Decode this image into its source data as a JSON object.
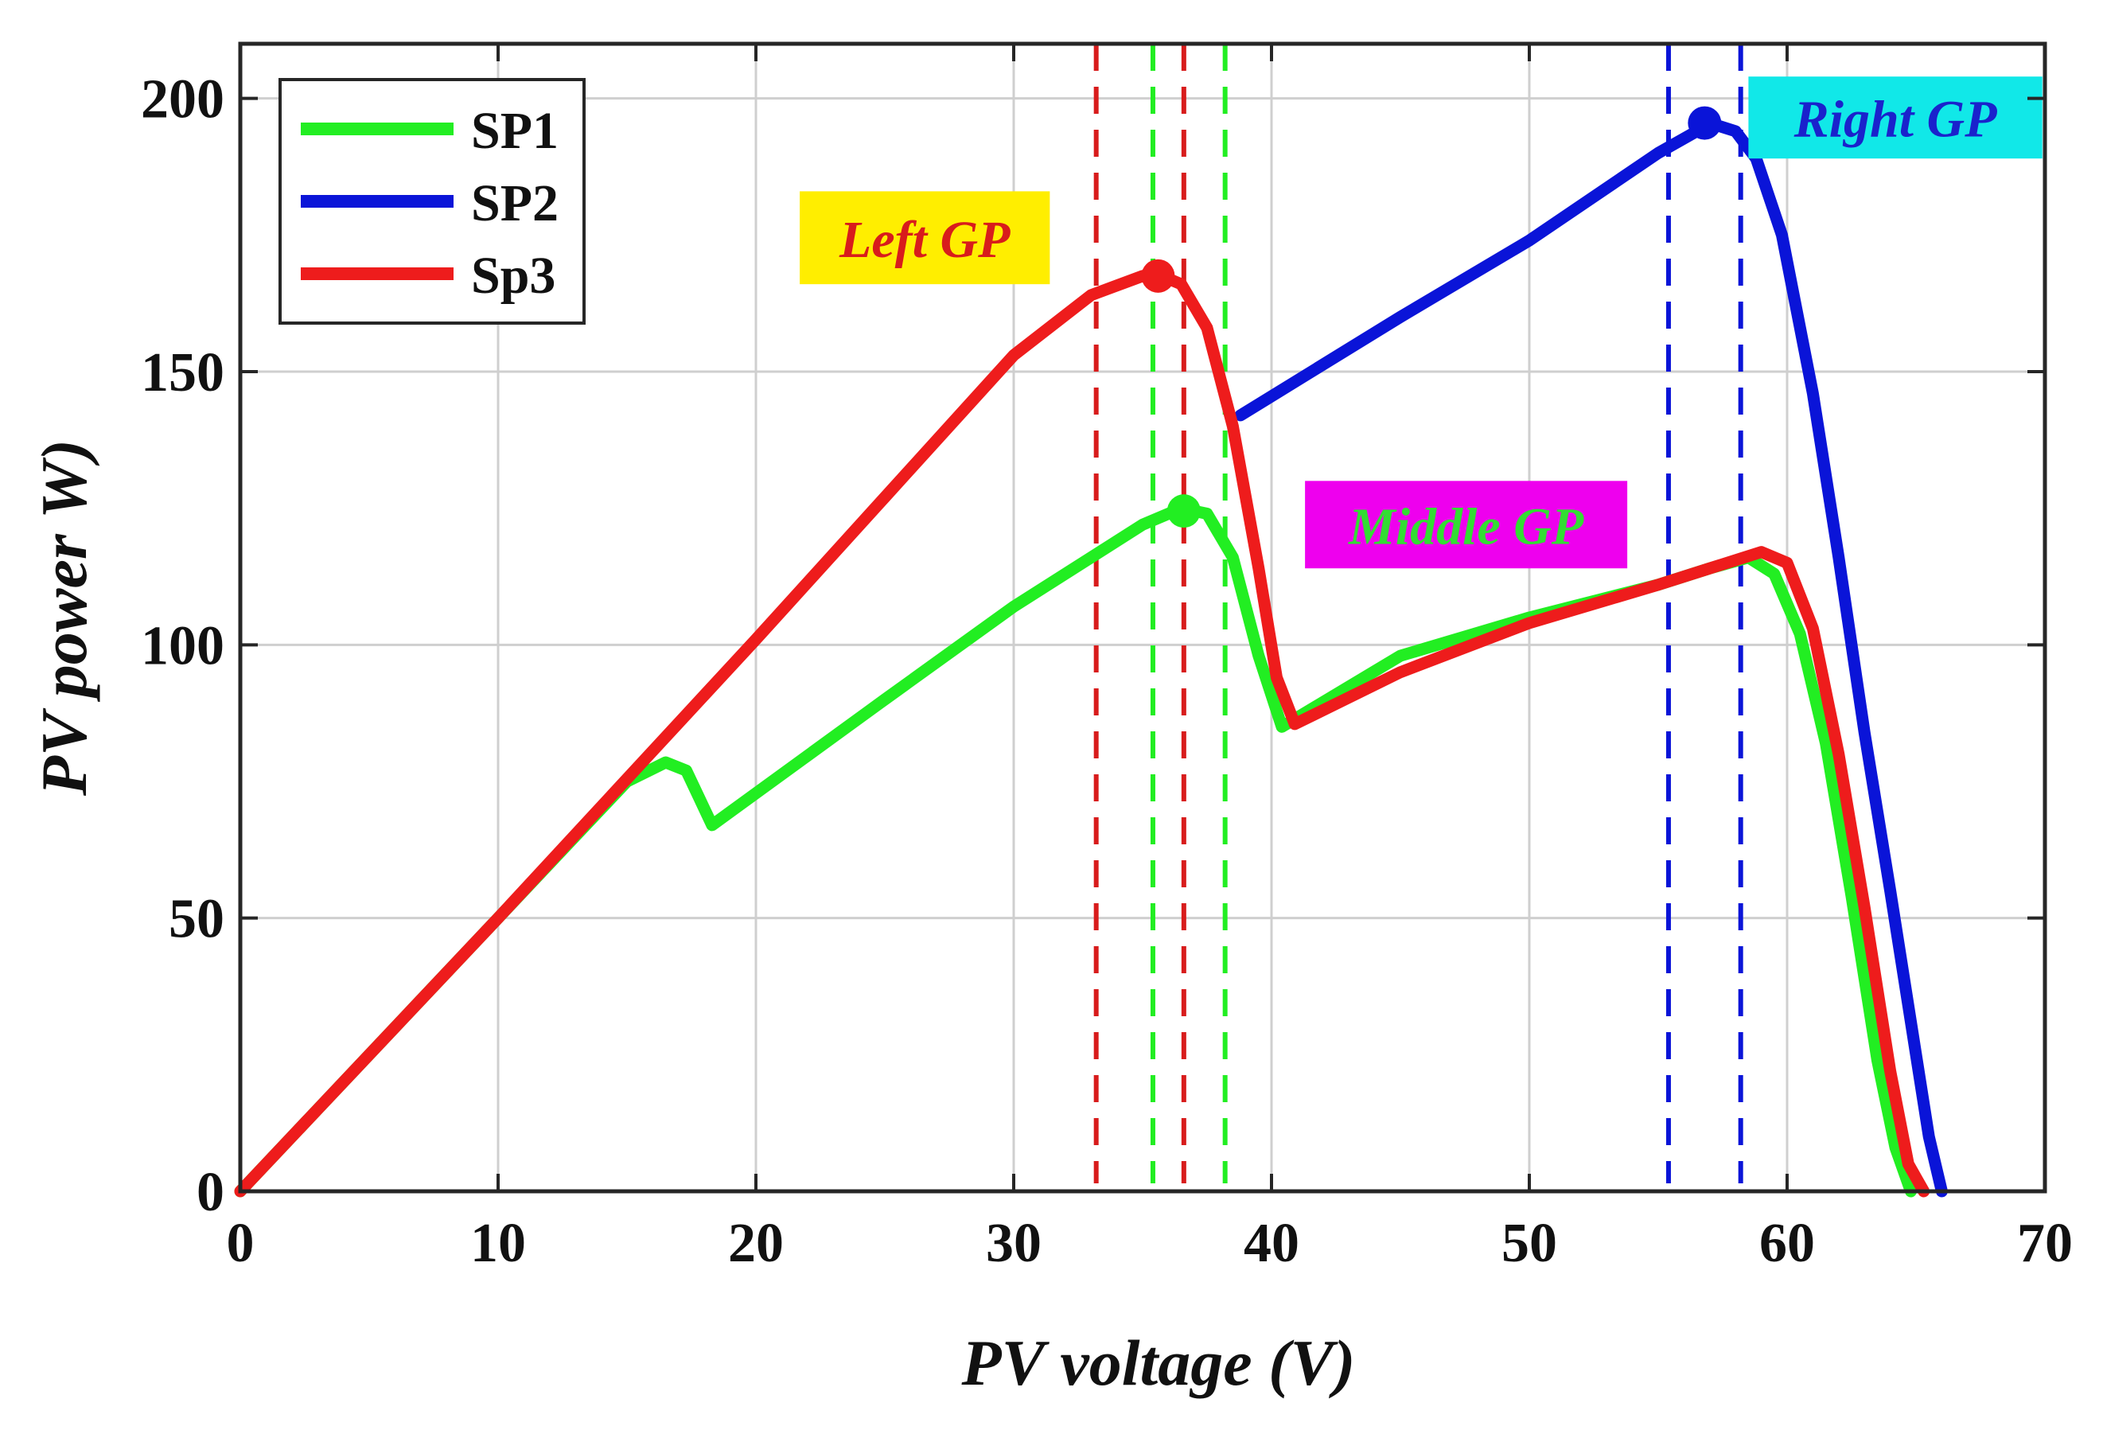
{
  "chart_data": {
    "type": "line",
    "title": "",
    "xlabel": "PV voltage (V)",
    "ylabel": "PV power W)",
    "xlim": [
      0,
      70
    ],
    "ylim": [
      0,
      210
    ],
    "xticks": [
      0,
      10,
      20,
      30,
      40,
      50,
      60,
      70
    ],
    "yticks": [
      0,
      50,
      100,
      150,
      200
    ],
    "grid": true,
    "legend": {
      "position": "top-left",
      "entries": [
        {
          "name": "SP1",
          "color": "#22ee22"
        },
        {
          "name": "SP2",
          "color": "#0a14d8"
        },
        {
          "name": "Sp3",
          "color": "#ee1c1c"
        }
      ]
    },
    "series": [
      {
        "name": "SP1",
        "color": "#22ee22",
        "x": [
          0,
          10,
          15,
          16.5,
          17.3,
          17.8,
          18.3,
          25,
          30,
          35,
          36.5,
          37.5,
          38.5,
          39.5,
          40.4,
          45,
          50,
          55,
          57,
          58.5,
          59.5,
          60.5,
          61.5,
          62.5,
          63.5,
          64.2,
          64.8
        ],
        "y": [
          0,
          50,
          75,
          78.5,
          77,
          72,
          67,
          90,
          107,
          122,
          125,
          124,
          116,
          98,
          85,
          98,
          105,
          111,
          114,
          116,
          113,
          102,
          82,
          54,
          24,
          8,
          0
        ]
      },
      {
        "name": "SP2",
        "color": "#0a14d8",
        "x": [
          38.8,
          45,
          50,
          55,
          56.5,
          57,
          58,
          58.8,
          59.8,
          61,
          62,
          63,
          64,
          65,
          65.5,
          66
        ],
        "y": [
          142,
          160,
          174,
          190,
          194,
          195.5,
          194,
          189,
          175,
          146,
          116,
          84,
          55,
          25,
          10,
          0
        ]
      },
      {
        "name": "Sp3",
        "color": "#ee1c1c",
        "x": [
          0,
          10,
          20,
          25,
          30,
          33,
          35,
          35.5,
          36.5,
          37.5,
          38.5,
          39.5,
          40.2,
          40.9,
          45,
          50,
          55,
          57,
          59,
          60,
          61,
          62,
          63,
          64,
          64.7,
          65.3
        ],
        "y": [
          0,
          50,
          101,
          127,
          153,
          164,
          167.5,
          168,
          166,
          158,
          140,
          114,
          94,
          85.5,
          95,
          104,
          111,
          114,
          117,
          115,
          103,
          80,
          52,
          22,
          5,
          0
        ]
      }
    ],
    "markers": [
      {
        "x": 35.6,
        "y": 167.5,
        "color": "#ee1c1c"
      },
      {
        "x": 36.6,
        "y": 124.5,
        "color": "#22ee22"
      },
      {
        "x": 56.8,
        "y": 195.5,
        "color": "#0a14d8"
      }
    ],
    "vlines": [
      {
        "x": 33.2,
        "color": "#d81c1c"
      },
      {
        "x": 35.4,
        "color": "#22ee22"
      },
      {
        "x": 36.6,
        "color": "#d81c1c"
      },
      {
        "x": 38.2,
        "color": "#22ee22"
      },
      {
        "x": 55.4,
        "color": "#0a14d8"
      },
      {
        "x": 58.2,
        "color": "#0a14d8"
      }
    ],
    "annotations": [
      {
        "text": "Left GP",
        "text_color": "#d81c1c",
        "bg_color": "#ffee00",
        "x_range": [
          21.7,
          31.4
        ],
        "y_range": [
          166,
          183
        ]
      },
      {
        "text": "Middle GP",
        "text_color": "#33dd33",
        "bg_color": "#ee00ee",
        "x_range": [
          41.3,
          53.8
        ],
        "y_range": [
          114,
          130
        ]
      },
      {
        "text": "Right GP",
        "text_color": "#1a22cc",
        "bg_color": "#11e8e8",
        "x_range": [
          58.5,
          69.9
        ],
        "y_range": [
          189,
          204
        ]
      }
    ]
  }
}
